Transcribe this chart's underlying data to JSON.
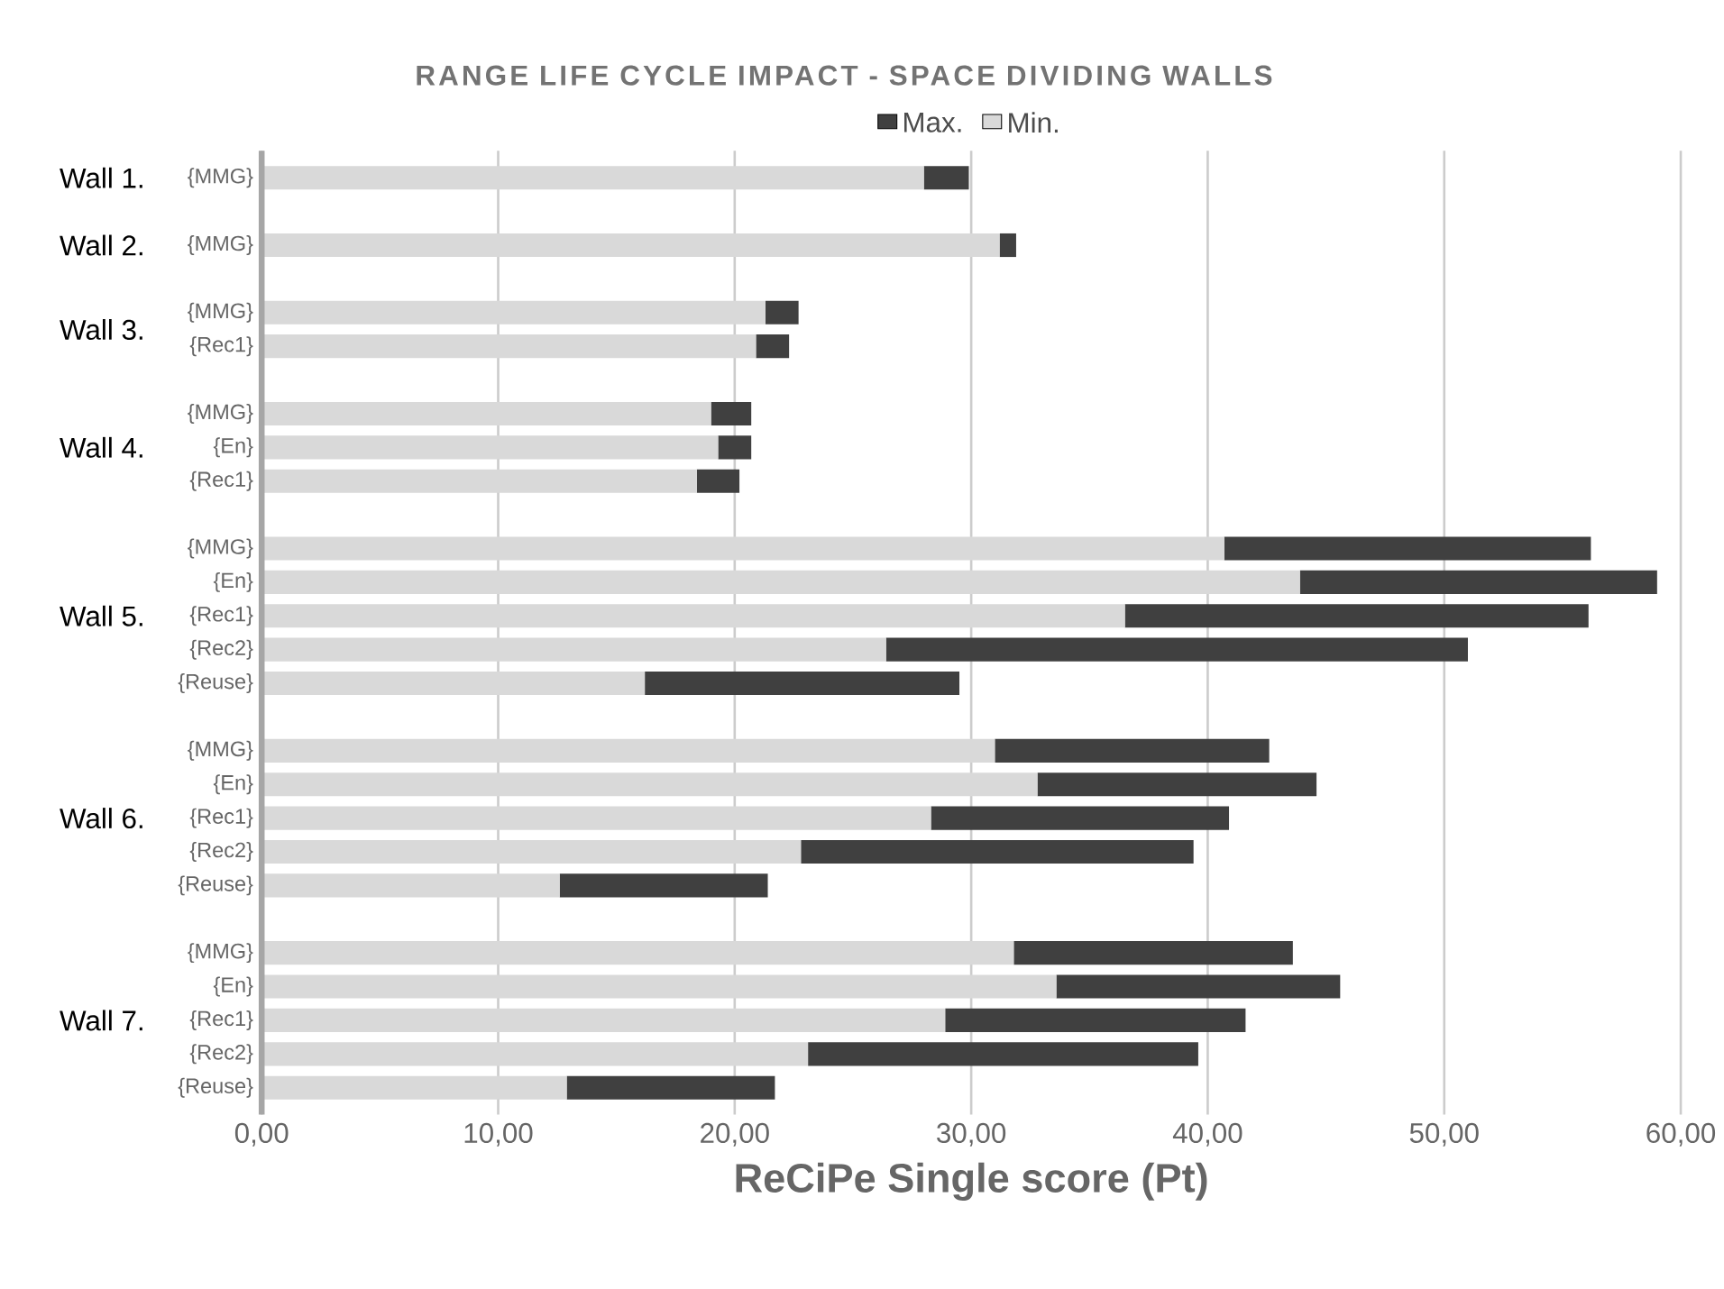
{
  "chart_data": {
    "type": "bar",
    "orientation": "horizontal",
    "stacked": true,
    "title": "RANGE LIFE CYCLE IMPACT - SPACE DIVIDING WALLS",
    "xlabel": "ReCiPe Single score (Pt)",
    "categories": [
      "{MMG}",
      null,
      "{MMG}",
      null,
      "{MMG}",
      "{Rec1}",
      null,
      "{MMG}",
      "{En}",
      "{Rec1}",
      null,
      "{MMG}",
      "{En}",
      "{Rec1}",
      "{Rec2}",
      "{Reuse}",
      null,
      "{MMG}",
      "{En}",
      "{Rec1}",
      "{Rec2}",
      "{Reuse}",
      null,
      "{MMG}",
      "{En}",
      "{Rec1}",
      "{Rec2}",
      "{Reuse}"
    ],
    "series": [
      {
        "name": "Min.",
        "color": "#d9d9d9",
        "values": [
          28.0,
          null,
          31.2,
          null,
          21.3,
          20.9,
          null,
          19.0,
          19.3,
          18.4,
          null,
          40.7,
          43.9,
          36.5,
          26.4,
          16.2,
          null,
          31.0,
          32.8,
          28.3,
          22.8,
          12.6,
          null,
          31.8,
          33.6,
          28.9,
          23.1,
          12.9
        ]
      },
      {
        "name": "Max.",
        "color": "#404040",
        "values": [
          1.9,
          null,
          0.7,
          null,
          1.4,
          1.4,
          null,
          1.7,
          1.4,
          1.8,
          null,
          15.5,
          15.1,
          19.6,
          24.6,
          13.3,
          null,
          11.6,
          11.8,
          12.6,
          16.6,
          8.8,
          null,
          11.8,
          12.0,
          12.7,
          16.5,
          8.8
        ]
      }
    ],
    "xlim": [
      0,
      60
    ],
    "xticks": [
      {
        "value": 0,
        "label": "0,00"
      },
      {
        "value": 10,
        "label": "10,00"
      },
      {
        "value": 20,
        "label": "20,00"
      },
      {
        "value": 30,
        "label": "30,00"
      },
      {
        "value": 40,
        "label": "40,00"
      },
      {
        "value": 50,
        "label": "50,00"
      },
      {
        "value": 60,
        "label": "60,00"
      }
    ],
    "annotations": [
      "Wall 1.",
      "Wall 2.",
      "Wall 3.",
      "Wall 4.",
      "Wall 5.",
      "Wall 6.",
      "Wall 7."
    ],
    "grid": "x",
    "legend": "top"
  }
}
